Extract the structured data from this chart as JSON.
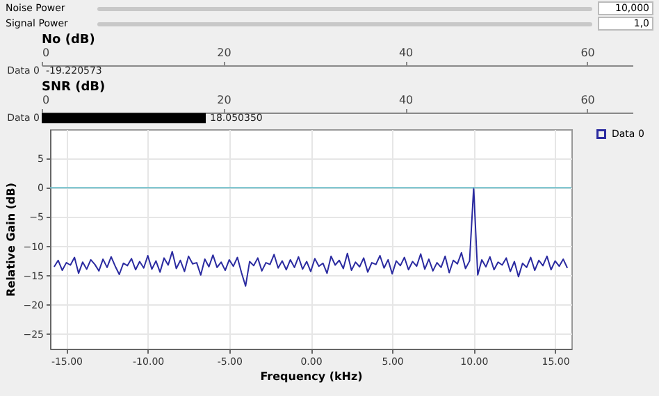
{
  "chart_data": [
    {
      "type": "other",
      "annotations": [
        "Noise Power",
        "10,000",
        "Signal Power",
        "1,0"
      ]
    },
    {
      "type": "bar",
      "title": "No (dB)",
      "orientation": "horizontal",
      "categories": [
        "Data 0"
      ],
      "values": [
        null
      ],
      "value_labels": [
        "-19.220573"
      ],
      "xlim": [
        0,
        65
      ],
      "xticks": [
        0,
        20,
        40,
        60
      ]
    },
    {
      "type": "bar",
      "title": "SNR (dB)",
      "orientation": "horizontal",
      "categories": [
        "Data 0"
      ],
      "values": [
        18.05035
      ],
      "value_labels": [
        "18.050350"
      ],
      "color": "#000000",
      "xlim": [
        0,
        65
      ],
      "xticks": [
        0,
        20,
        40,
        60
      ]
    },
    {
      "type": "line",
      "xlabel": "Frequency (kHz)",
      "ylabel": "Relative Gain (dB)",
      "xlim": [
        -16,
        16
      ],
      "ylim": [
        -27.5,
        10
      ],
      "xticks": [
        {
          "value": -15,
          "label": "-15.00"
        },
        {
          "value": -10,
          "label": "-10.00"
        },
        {
          "value": -5,
          "label": "-5.00"
        },
        {
          "value": 0,
          "label": "0.00"
        },
        {
          "value": 5,
          "label": "5.00"
        },
        {
          "value": 10,
          "label": "10.00"
        },
        {
          "value": 15,
          "label": "15.00"
        }
      ],
      "yticks": [
        -25,
        -20,
        -15,
        -10,
        -5,
        0,
        5
      ],
      "grid": true,
      "legend": "top right",
      "marker": "none",
      "line_style": "solid",
      "ref_lines": [
        {
          "axis": "y",
          "value": 0,
          "color": "#6fbfca"
        }
      ],
      "series": [
        {
          "name": "Data 0",
          "color": "#2a2aa0",
          "x": [
            -15.75,
            -15.5,
            -15.25,
            -15,
            -14.75,
            -14.5,
            -14.25,
            -14,
            -13.75,
            -13.5,
            -13.25,
            -13,
            -12.75,
            -12.5,
            -12.25,
            -12,
            -11.75,
            -11.5,
            -11.25,
            -11,
            -10.75,
            -10.5,
            -10.25,
            -10,
            -9.75,
            -9.5,
            -9.25,
            -9,
            -8.75,
            -8.5,
            -8.25,
            -8,
            -7.75,
            -7.5,
            -7.25,
            -7,
            -6.75,
            -6.5,
            -6.25,
            -6,
            -5.75,
            -5.5,
            -5.25,
            -5,
            -4.75,
            -4.5,
            -4.25,
            -4,
            -3.75,
            -3.5,
            -3.25,
            -3,
            -2.75,
            -2.5,
            -2.25,
            -2,
            -1.75,
            -1.5,
            -1.25,
            -1,
            -0.75,
            -0.5,
            -0.25,
            0,
            0.25,
            0.5,
            0.75,
            1,
            1.25,
            1.5,
            1.75,
            2,
            2.25,
            2.5,
            2.75,
            3,
            3.25,
            3.5,
            3.75,
            4,
            4.25,
            4.5,
            4.75,
            5,
            5.25,
            5.5,
            5.75,
            6,
            6.25,
            6.5,
            6.75,
            7,
            7.25,
            7.5,
            7.75,
            8,
            8.25,
            8.5,
            8.75,
            9,
            9.25,
            9.5,
            9.75,
            10,
            10.25,
            10.5,
            10.75,
            11,
            11.25,
            11.5,
            11.75,
            12,
            12.25,
            12.5,
            12.75,
            13,
            13.25,
            13.5,
            13.75,
            14,
            14.25,
            14.5,
            14.75,
            15,
            15.25,
            15.5,
            15.75
          ],
          "values": [
            -13.5,
            -12.4,
            -14.1,
            -12.8,
            -13.2,
            -11.9,
            -14.6,
            -12.7,
            -13.9,
            -12.3,
            -13.1,
            -14.2,
            -12.2,
            -13.6,
            -11.8,
            -13.4,
            -14.8,
            -12.9,
            -13.3,
            -12.1,
            -14.0,
            -12.6,
            -13.7,
            -11.6,
            -13.9,
            -12.5,
            -14.4,
            -12.0,
            -13.2,
            -10.9,
            -13.8,
            -12.4,
            -14.3,
            -11.7,
            -13.0,
            -12.8,
            -14.9,
            -12.2,
            -13.5,
            -11.5,
            -13.6,
            -12.7,
            -14.1,
            -12.3,
            -13.4,
            -11.9,
            -14.5,
            -16.8,
            -12.6,
            -13.3,
            -12.0,
            -14.2,
            -12.8,
            -13.1,
            -11.4,
            -13.7,
            -12.5,
            -14.0,
            -12.3,
            -13.6,
            -11.8,
            -13.9,
            -12.6,
            -14.3,
            -12.1,
            -13.4,
            -12.9,
            -14.6,
            -11.7,
            -13.2,
            -12.4,
            -13.8,
            -11.2,
            -14.1,
            -12.7,
            -13.5,
            -12.0,
            -14.4,
            -12.8,
            -13.1,
            -11.6,
            -13.7,
            -12.3,
            -14.7,
            -12.5,
            -13.3,
            -11.9,
            -14.0,
            -12.6,
            -13.4,
            -11.3,
            -13.9,
            -12.2,
            -14.2,
            -12.8,
            -13.6,
            -11.7,
            -14.5,
            -12.4,
            -13.0,
            -11.1,
            -13.8,
            -12.5,
            0.0,
            -14.9,
            -12.3,
            -13.5,
            -11.8,
            -14.0,
            -12.7,
            -13.2,
            -12.0,
            -14.3,
            -12.6,
            -15.2,
            -12.9,
            -13.6,
            -11.9,
            -14.1,
            -12.4,
            -13.3,
            -11.7,
            -14.0,
            -12.5,
            -13.4,
            -12.2,
            -13.7
          ]
        }
      ]
    }
  ]
}
